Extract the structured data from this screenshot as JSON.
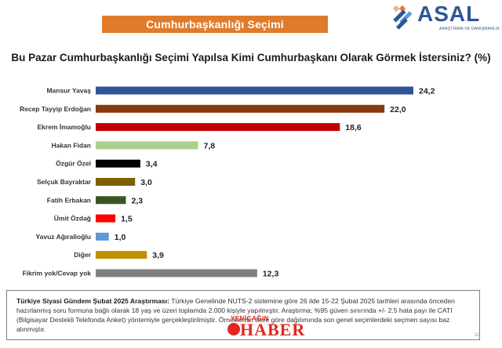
{
  "header": {
    "title": "Cumhurbaşkanlığı Seçimi"
  },
  "logo": {
    "name": "ASAL",
    "subtitle": "ARAŞTIRMA VE DANIŞMANLIK",
    "color": "#2f5597"
  },
  "chart_data": {
    "type": "bar",
    "orientation": "horizontal",
    "title": "Bu Pazar Cumhurbaşkanlığı Seçimi Yapılsa Kimi Cumhurbaşkanı Olarak Görmek İstersiniz? (%)",
    "categories": [
      "Mansur Yavaş",
      "Recep Tayyip Erdoğan",
      "Ekrem İmamoğlu",
      "Hakan Fidan",
      "Özgür Özel",
      "Selçuk Bayraktar",
      "Fatih Erbakan",
      "Ümit Özdağ",
      "Yavuz Ağıralioğlu",
      "Diğer",
      "Fikrim yok/Cevap yok"
    ],
    "values": [
      24.2,
      22.0,
      18.6,
      7.8,
      3.4,
      3.0,
      2.3,
      1.5,
      1.0,
      3.9,
      12.3
    ],
    "value_labels": [
      "24,2",
      "22,0",
      "18,6",
      "7,8",
      "3,4",
      "3,0",
      "2,3",
      "1,5",
      "1,0",
      "3,9",
      "12,3"
    ],
    "colors": [
      "#2e5597",
      "#843c0c",
      "#c00000",
      "#a9d18e",
      "#000000",
      "#7f6000",
      "#375623",
      "#ff0000",
      "#5b9bd5",
      "#bf9000",
      "#7f7f7f"
    ],
    "xlim": [
      0,
      26
    ],
    "grid": false,
    "legend": "none"
  },
  "footnote": {
    "bold": "Türkiye Siyasi Gündem Şubat 2025 Araştırması:",
    "text": " Türkiye Genelinde NUTS-2 sistemine göre 26 ilde 15-22 Şubat 2025 tarihleri arasında önceden hazırlanmış soru formuna bağlı olarak 18 yaş ve üzeri toplamda 2.000 kişiyle yapılmıştır. Araştırma; %95 güven sınırında +/- 2.5 hata payı ile CATI (Bilgisayar Destekli Telefonda Anket) yöntemiyle gerçekleştirilmiştir. Örneklemin illere göre dağılımında son genel seçimlerdeki seçmen sayısı baz alınmıştır."
  },
  "page_number": "32",
  "watermark": {
    "top": "YENİÇAĞIN",
    "main": "HABER"
  }
}
